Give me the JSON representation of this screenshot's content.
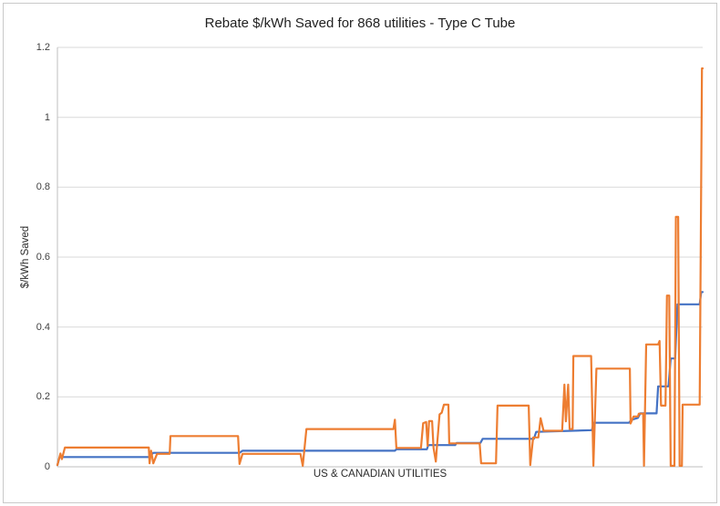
{
  "window": {
    "background_color": "#ffffff",
    "frame_border_color": "#c9c9c9"
  },
  "chart_data": {
    "type": "line",
    "title": "Rebate $/kWh Saved for 868 utilities - Type C Tube",
    "xlabel": "US & CANADIAN UTILITIES",
    "ylabel": "$/kWh Saved",
    "x_range": [
      0,
      868
    ],
    "ylim": [
      0,
      1.2
    ],
    "yticks": [
      0,
      0.2,
      0.4,
      0.6,
      0.8,
      1,
      1.2
    ],
    "ytick_labels": [
      "0",
      "0.2",
      "0.4",
      "0.6",
      "0.8",
      "1",
      "1.2"
    ],
    "xtick_labels": [],
    "grid": true,
    "legend_position": "none",
    "gridline_color": "#d9d9d9",
    "axis_line_color": "#bfbfbf",
    "series": [
      {
        "name": "blue-step-series",
        "color": "#4472C4",
        "points": [
          [
            0,
            0.005
          ],
          [
            3,
            0.028
          ],
          [
            123,
            0.028
          ],
          [
            129,
            0.04
          ],
          [
            245,
            0.04
          ],
          [
            249,
            0.046
          ],
          [
            454,
            0.046
          ],
          [
            456,
            0.05
          ],
          [
            497,
            0.05
          ],
          [
            499,
            0.062
          ],
          [
            535,
            0.062
          ],
          [
            537,
            0.068
          ],
          [
            569,
            0.068
          ],
          [
            572,
            0.08
          ],
          [
            641,
            0.08
          ],
          [
            644,
            0.1
          ],
          [
            719,
            0.105
          ],
          [
            721,
            0.126
          ],
          [
            769,
            0.126
          ],
          [
            772,
            0.134
          ],
          [
            781,
            0.14
          ],
          [
            784,
            0.153
          ],
          [
            806,
            0.153
          ],
          [
            808,
            0.23
          ],
          [
            822,
            0.23
          ],
          [
            825,
            0.31
          ],
          [
            831,
            0.31
          ],
          [
            834,
            0.465
          ],
          [
            864,
            0.465
          ],
          [
            866,
            0.5
          ],
          [
            868,
            0.5
          ]
        ]
      },
      {
        "name": "orange-volatile-series",
        "color": "#ED7D31",
        "points": [
          [
            0,
            0.005
          ],
          [
            4,
            0.038
          ],
          [
            6,
            0.022
          ],
          [
            10,
            0.055
          ],
          [
            123,
            0.055
          ],
          [
            124,
            0.01
          ],
          [
            126,
            0.046
          ],
          [
            129,
            0.01
          ],
          [
            134,
            0.037
          ],
          [
            151,
            0.037
          ],
          [
            152,
            0.088
          ],
          [
            243,
            0.088
          ],
          [
            245,
            0.008
          ],
          [
            249,
            0.037
          ],
          [
            327,
            0.037
          ],
          [
            330,
            0.003
          ],
          [
            335,
            0.108
          ],
          [
            452,
            0.108
          ],
          [
            454,
            0.135
          ],
          [
            456,
            0.054
          ],
          [
            489,
            0.054
          ],
          [
            492,
            0.125
          ],
          [
            496,
            0.128
          ],
          [
            498,
            0.06
          ],
          [
            500,
            0.131
          ],
          [
            504,
            0.131
          ],
          [
            506,
            0.054
          ],
          [
            509,
            0.015
          ],
          [
            511,
            0.07
          ],
          [
            514,
            0.15
          ],
          [
            517,
            0.155
          ],
          [
            520,
            0.178
          ],
          [
            526,
            0.178
          ],
          [
            527,
            0.067
          ],
          [
            568,
            0.067
          ],
          [
            570,
            0.01
          ],
          [
            590,
            0.01
          ],
          [
            592,
            0.175
          ],
          [
            634,
            0.175
          ],
          [
            636,
            0.005
          ],
          [
            640,
            0.084
          ],
          [
            647,
            0.084
          ],
          [
            650,
            0.139
          ],
          [
            654,
            0.103
          ],
          [
            679,
            0.103
          ],
          [
            682,
            0.235
          ],
          [
            684,
            0.13
          ],
          [
            687,
            0.235
          ],
          [
            689,
            0.108
          ],
          [
            693,
            0.108
          ],
          [
            694,
            0.317
          ],
          [
            718,
            0.317
          ],
          [
            721,
            0.003
          ],
          [
            725,
            0.281
          ],
          [
            770,
            0.281
          ],
          [
            771,
            0.124
          ],
          [
            775,
            0.144
          ],
          [
            781,
            0.144
          ],
          [
            782,
            0.152
          ],
          [
            788,
            0.152
          ],
          [
            789,
            0.003
          ],
          [
            792,
            0.35
          ],
          [
            808,
            0.35
          ],
          [
            810,
            0.36
          ],
          [
            812,
            0.175
          ],
          [
            818,
            0.175
          ],
          [
            820,
            0.49
          ],
          [
            823,
            0.49
          ],
          [
            825,
            0.003
          ],
          [
            830,
            0.003
          ],
          [
            832,
            0.715
          ],
          [
            835,
            0.715
          ],
          [
            837,
            0.003
          ],
          [
            840,
            0.003
          ],
          [
            841,
            0.178
          ],
          [
            864,
            0.178
          ],
          [
            867,
            1.14
          ],
          [
            868,
            1.14
          ]
        ]
      }
    ]
  }
}
